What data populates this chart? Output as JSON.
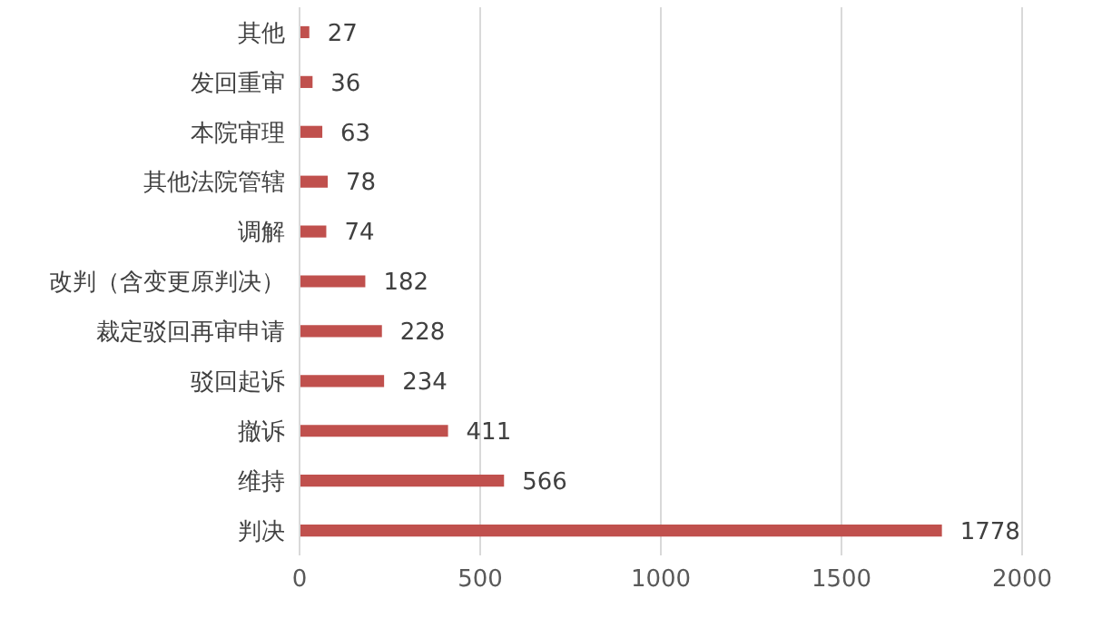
{
  "chart_data": {
    "type": "bar",
    "orientation": "horizontal",
    "categories": [
      "其他",
      "发回重审",
      "本院审理",
      "其他法院管辖",
      "调解",
      "改判（含变更原判决）",
      "裁定驳回再审申请",
      "驳回起诉",
      "撤诉",
      "维持",
      "判决"
    ],
    "values": [
      27,
      36,
      63,
      78,
      74,
      182,
      228,
      234,
      411,
      566,
      1778
    ],
    "color": "#c0504d",
    "xlim": [
      0,
      2000
    ],
    "xticks": [
      0,
      500,
      1000,
      1500,
      2000
    ],
    "grid": "x",
    "data_labels": true
  }
}
